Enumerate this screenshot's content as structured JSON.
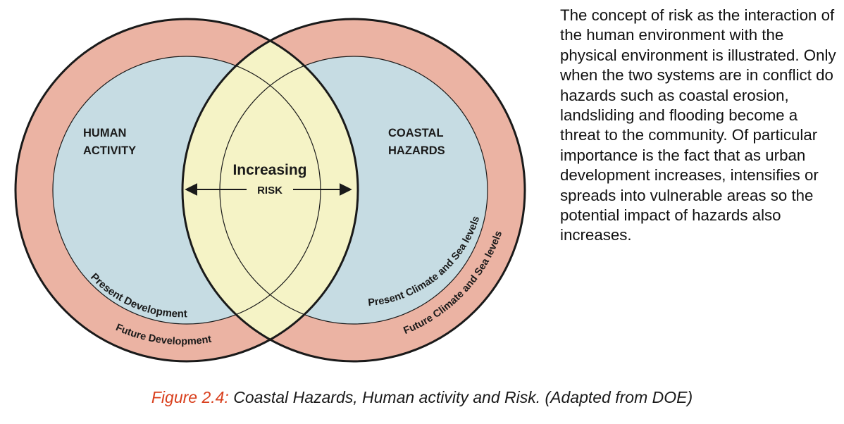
{
  "diagram": {
    "left_circle": {
      "title_line1": "HUMAN",
      "title_line2": "ACTIVITY",
      "inner_ring_label": "Present Development",
      "outer_ring_label": "Future Development"
    },
    "right_circle": {
      "title_line1": "COASTAL",
      "title_line2": "HAZARDS",
      "inner_ring_label": "Present Climate and Sea levels",
      "outer_ring_label": "Future Climate and Sea levels"
    },
    "center": {
      "increasing_label": "Increasing",
      "risk_label": "RISK"
    },
    "colors": {
      "outer_ring": "#ebb3a3",
      "inner_circle": "#c6dce3",
      "overlap": "#f5f3c6",
      "outline": "#1a1a1a"
    }
  },
  "description": "The concept of risk as the interaction of the human environment with the physical environment is illustrated. Only when the two systems are in conflict do hazards such as coastal erosion, landsliding and flooding become a threat to the community. Of particular importance is the fact that as urban development increases, intensifies or spreads into vulnerable areas so the potential impact of hazards also increases.",
  "caption": {
    "label": "Figure 2.4:",
    "text": " Coastal Hazards, Human activity and Risk. (Adapted from DOE)",
    "label_color": "#d9401e"
  }
}
